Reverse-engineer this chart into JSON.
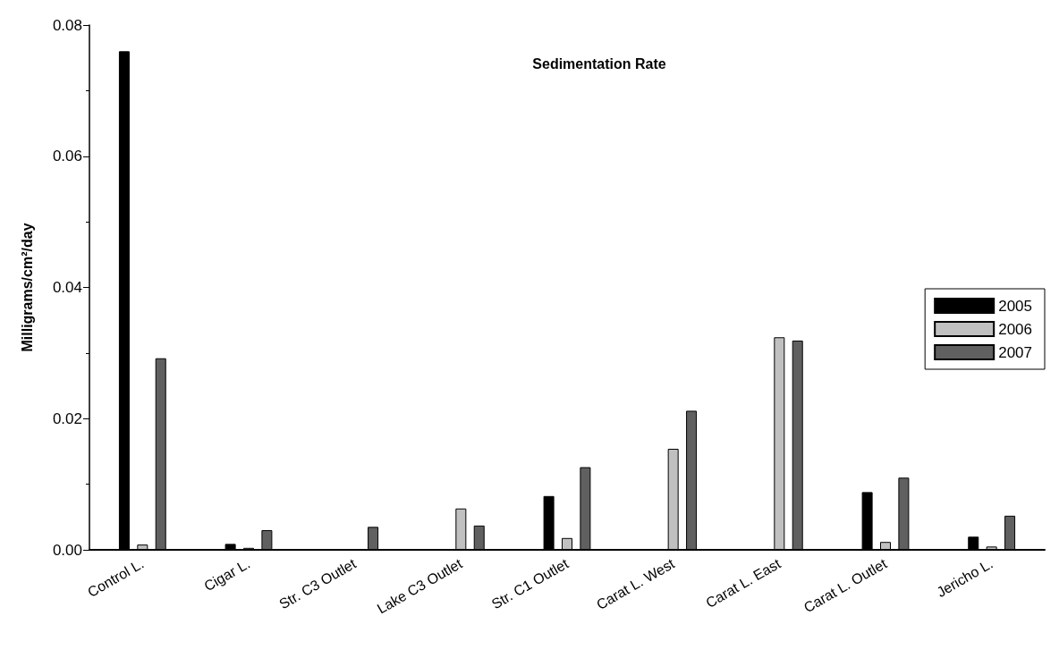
{
  "chart_data": {
    "type": "bar",
    "title": "Sedimentation Rate",
    "ylabel": "Milligrams/cm²/day",
    "categories": [
      "Control L.",
      "Cigar L.",
      "Str. C3 Outlet",
      "Lake C3 Outlet",
      "Str. C1 Outlet",
      "Carat L. West",
      "Carat L. East",
      "Carat L. Outlet",
      "Jericho L."
    ],
    "series": [
      {
        "name": "2005",
        "color": "#000000",
        "values": [
          0.076,
          0.0009,
          null,
          null,
          0.0082,
          null,
          null,
          0.0088,
          0.002
        ]
      },
      {
        "name": "2006",
        "color": "#c0c0c0",
        "values": [
          0.0008,
          0.0003,
          null,
          0.0063,
          0.0018,
          0.0154,
          0.0324,
          0.0012,
          0.0005
        ]
      },
      {
        "name": "2007",
        "color": "#606060",
        "values": [
          0.0292,
          0.003,
          0.0035,
          0.0037,
          0.0126,
          0.0212,
          0.0319,
          0.011,
          0.0052
        ]
      }
    ],
    "ylim": [
      0,
      0.08
    ],
    "yticks": [
      {
        "value": 0,
        "label": "0.00"
      },
      {
        "value": 0.02,
        "label": "0.02"
      },
      {
        "value": 0.04,
        "label": "0.04"
      },
      {
        "value": 0.06,
        "label": "0.06"
      },
      {
        "value": 0.08,
        "label": "0.08"
      }
    ],
    "grid": false,
    "legend": "right"
  }
}
